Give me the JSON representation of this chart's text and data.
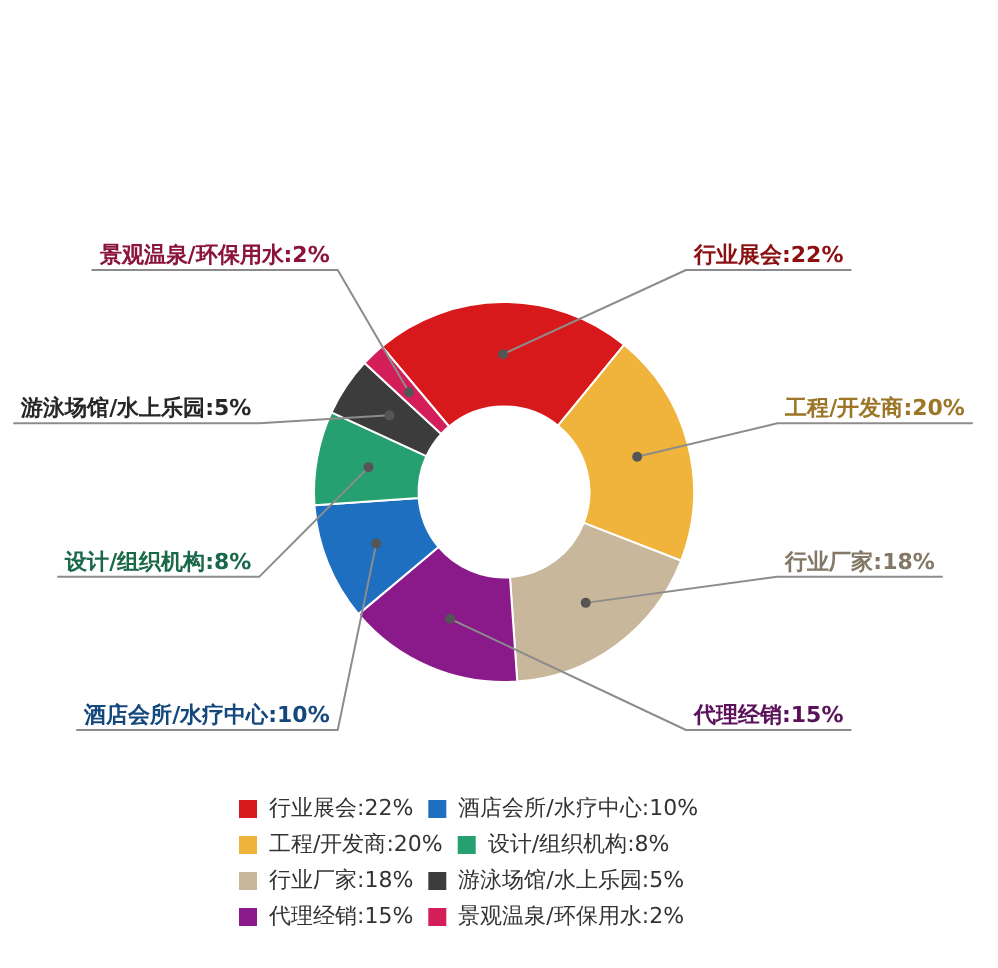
{
  "chart_data": {
    "type": "donut",
    "categories": [
      "行业展会:22%",
      "工程/开发商:20%",
      "行业厂家:18%",
      "代理经销:15%",
      "酒店会所/水疗中心:10%",
      "设计/组织机构:8%",
      "游泳场馆/水上乐园:5%",
      "景观温泉/环保用水:2%"
    ],
    "values": [
      22,
      20,
      18,
      15,
      10,
      8,
      5,
      2
    ],
    "colors": [
      "#d7191c",
      "#f0b43c",
      "#c9b79c",
      "#8a1a8a",
      "#1e6fc0",
      "#26a070",
      "#3c3c3c",
      "#d41e5a"
    ],
    "legend": "bottom"
  }
}
